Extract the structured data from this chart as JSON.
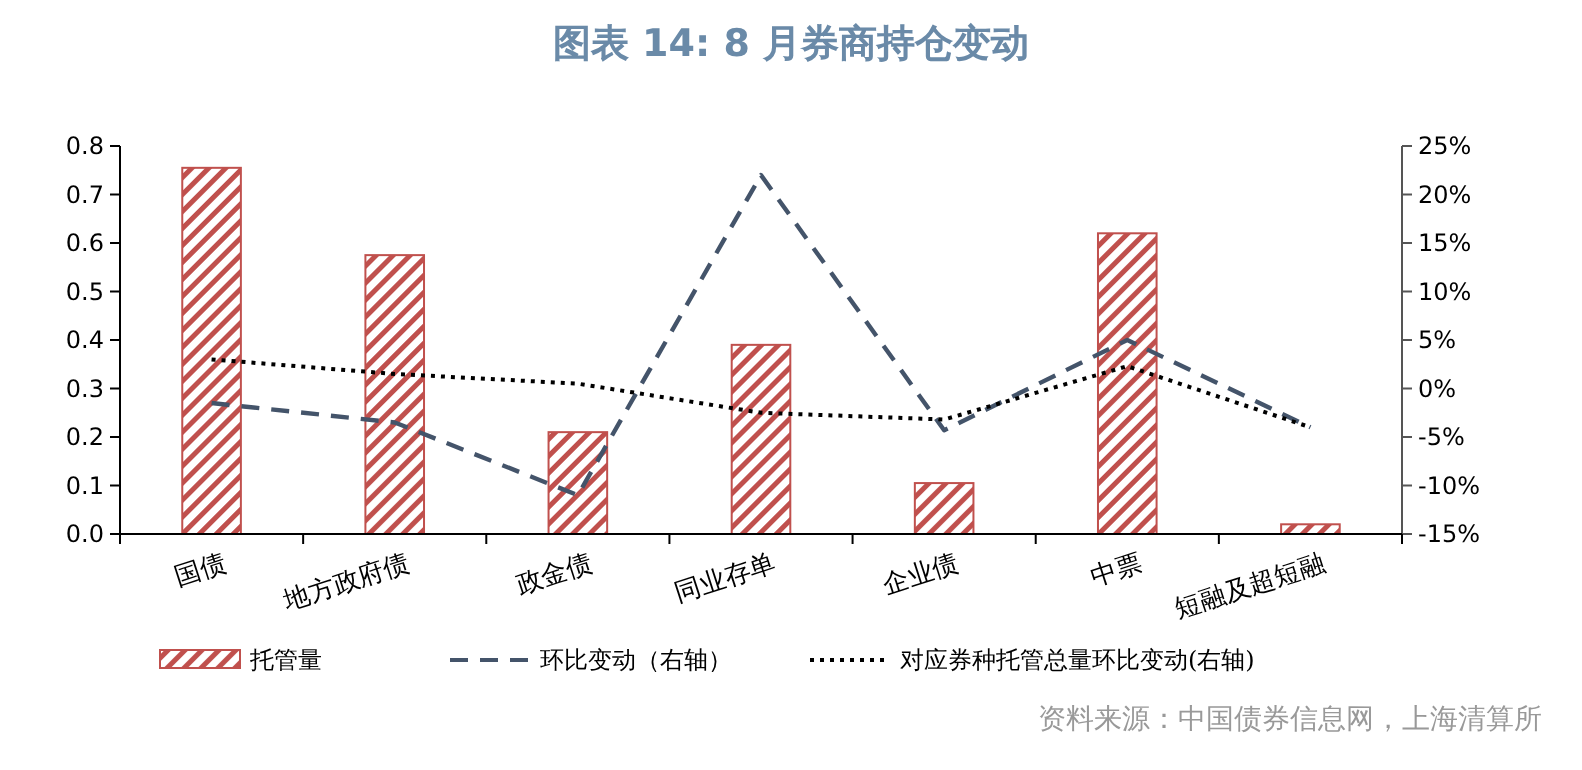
{
  "chart_data": {
    "type": "bar",
    "title": "图表 14: 8 月券商持仓变动",
    "categories": [
      "国债",
      "地方政府债",
      "政金债",
      "同业存单",
      "企业债",
      "中票",
      "短融及超短融"
    ],
    "series": [
      {
        "name": "托管量",
        "color": "#c0504d",
        "values": [
          0.755,
          0.575,
          0.21,
          0.39,
          0.105,
          0.62,
          0.02
        ]
      },
      {
        "name": "环比变动（右轴）",
        "type": "line",
        "axis": "y2",
        "line_style": "dashed",
        "color": "#44546a",
        "values": [
          -1.5,
          -3.5,
          -11,
          22,
          -4.3,
          5,
          -4
        ]
      },
      {
        "name": "对应券种托管总量环比变动(右轴)",
        "type": "line",
        "axis": "y2",
        "line_style": "dotted",
        "color": "#000000",
        "values": [
          3,
          1.5,
          0.5,
          -2.5,
          -3.2,
          2.3,
          -4
        ]
      }
    ],
    "ylim": [
      0,
      0.8
    ],
    "yticks": [
      {
        "value": 0,
        "label": "0.0"
      },
      {
        "value": 0.1,
        "label": "0.1"
      },
      {
        "value": 0.2,
        "label": "0.2"
      },
      {
        "value": 0.3,
        "label": "0.3"
      },
      {
        "value": 0.4,
        "label": "0.4"
      },
      {
        "value": 0.5,
        "label": "0.5"
      },
      {
        "value": 0.6,
        "label": "0.6"
      },
      {
        "value": 0.7,
        "label": "0.7"
      },
      {
        "value": 0.8,
        "label": "0.8"
      }
    ],
    "y2lim": [
      -15,
      25
    ],
    "y2ticks": [
      {
        "value": -15,
        "label": "-15%"
      },
      {
        "value": -10,
        "label": "-10%"
      },
      {
        "value": -5,
        "label": "-5%"
      },
      {
        "value": 0,
        "label": "0%"
      },
      {
        "value": 5,
        "label": "5%"
      },
      {
        "value": 10,
        "label": "10%"
      },
      {
        "value": 15,
        "label": "15%"
      },
      {
        "value": 20,
        "label": "20%"
      },
      {
        "value": 25,
        "label": "25%"
      }
    ],
    "legend": "bottom",
    "grid": false,
    "marker": "none",
    "annotations": [
      "资料来源：中国债券信息网，上海清算所"
    ]
  }
}
